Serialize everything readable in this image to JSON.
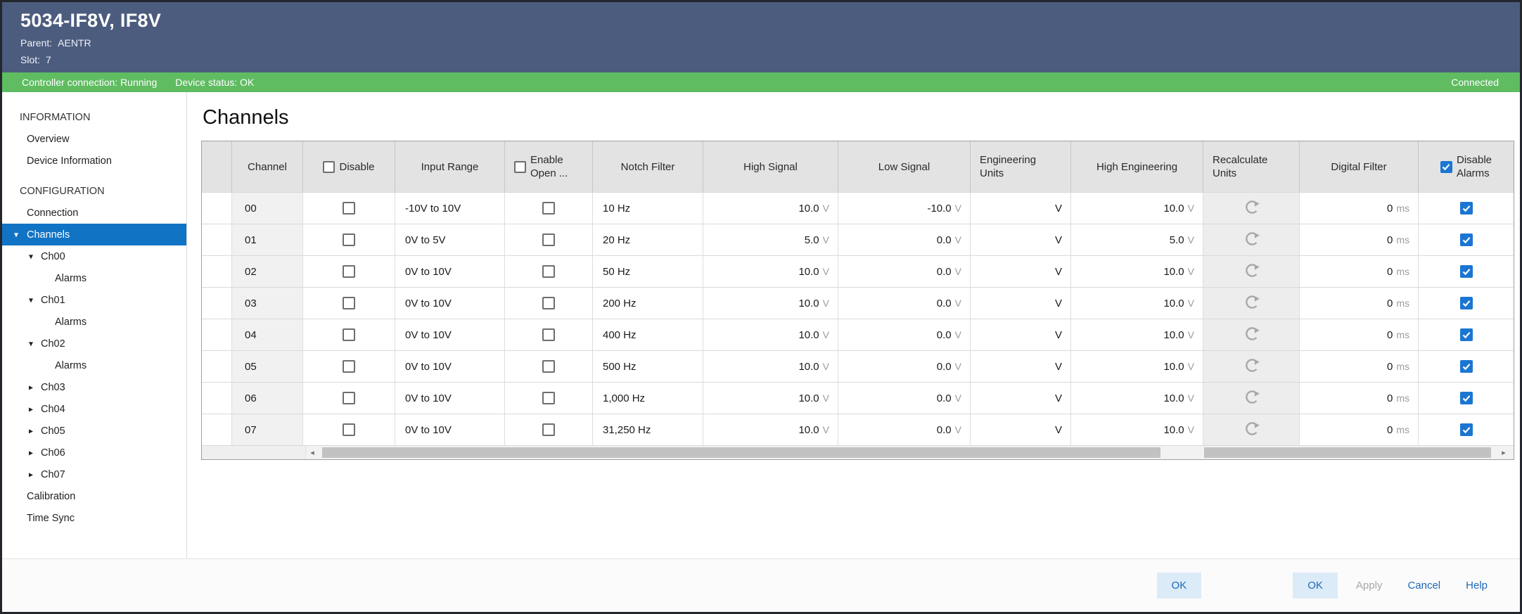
{
  "titlebar": {
    "title": "5034-IF8V, IF8V",
    "parent_label": "Parent:",
    "parent_value": "AENTR",
    "slot_label": "Slot:",
    "slot_value": "7"
  },
  "statusbar": {
    "controller": "Controller connection: Running",
    "device": "Device status: OK",
    "connection_state": "Connected"
  },
  "sidebar": {
    "items": [
      {
        "label": "INFORMATION",
        "type": "section"
      },
      {
        "label": "Overview",
        "type": "item"
      },
      {
        "label": "Device Information",
        "type": "item"
      },
      {
        "label": "CONFIGURATION",
        "type": "section"
      },
      {
        "label": "Connection",
        "type": "item"
      },
      {
        "label": "Channels",
        "type": "item",
        "arrow": "expanded",
        "selected": true
      },
      {
        "label": "Ch00",
        "type": "child",
        "arrow": "expanded"
      },
      {
        "label": "Alarms",
        "type": "grandchild"
      },
      {
        "label": "Ch01",
        "type": "child",
        "arrow": "expanded"
      },
      {
        "label": "Alarms",
        "type": "grandchild"
      },
      {
        "label": "Ch02",
        "type": "child",
        "arrow": "expanded"
      },
      {
        "label": "Alarms",
        "type": "grandchild"
      },
      {
        "label": "Ch03",
        "type": "child",
        "arrow": "collapsed"
      },
      {
        "label": "Ch04",
        "type": "child",
        "arrow": "collapsed"
      },
      {
        "label": "Ch05",
        "type": "child",
        "arrow": "collapsed"
      },
      {
        "label": "Ch06",
        "type": "child",
        "arrow": "collapsed"
      },
      {
        "label": "Ch07",
        "type": "child",
        "arrow": "collapsed"
      },
      {
        "label": "Calibration",
        "type": "item"
      },
      {
        "label": "Time Sync",
        "type": "item"
      }
    ]
  },
  "main": {
    "title": "Channels",
    "table": {
      "headers": {
        "channel": "Channel",
        "disable": "Disable",
        "input_range": "Input Range",
        "enable_open_line1": "Enable",
        "enable_open_line2": "Open ...",
        "notch_filter": "Notch Filter",
        "high_signal": "High Signal",
        "low_signal": "Low Signal",
        "engineering_units_line1": "Engineering",
        "engineering_units_line2": "Units",
        "high_engineering": "High Engineering",
        "recalculate_line1": "Recalculate",
        "recalculate_line2": "Units",
        "digital_filter": "Digital Filter",
        "disable_alarms_line1": "Disable",
        "disable_alarms_line2": "Alarms"
      },
      "header_checkboxes": {
        "disable": false,
        "enable_open": false,
        "disable_alarms": true
      },
      "signal_unit": "V",
      "filter_unit": "ms",
      "rows": [
        {
          "channel": "00",
          "disable": false,
          "input_range": "-10V to 10V",
          "enable_open": false,
          "notch_filter": "10 Hz",
          "high_signal": "10.0",
          "low_signal": "-10.0",
          "engineering_units": "V",
          "high_engineering": "10.0",
          "digital_filter": "0",
          "disable_alarms": true
        },
        {
          "channel": "01",
          "disable": false,
          "input_range": "0V to 5V",
          "enable_open": false,
          "notch_filter": "20 Hz",
          "high_signal": "5.0",
          "low_signal": "0.0",
          "engineering_units": "V",
          "high_engineering": "5.0",
          "digital_filter": "0",
          "disable_alarms": true
        },
        {
          "channel": "02",
          "disable": false,
          "input_range": "0V to 10V",
          "enable_open": false,
          "notch_filter": "50 Hz",
          "high_signal": "10.0",
          "low_signal": "0.0",
          "engineering_units": "V",
          "high_engineering": "10.0",
          "digital_filter": "0",
          "disable_alarms": true
        },
        {
          "channel": "03",
          "disable": false,
          "input_range": "0V to 10V",
          "enable_open": false,
          "notch_filter": "200 Hz",
          "high_signal": "10.0",
          "low_signal": "0.0",
          "engineering_units": "V",
          "high_engineering": "10.0",
          "digital_filter": "0",
          "disable_alarms": true
        },
        {
          "channel": "04",
          "disable": false,
          "input_range": "0V to 10V",
          "enable_open": false,
          "notch_filter": "400 Hz",
          "high_signal": "10.0",
          "low_signal": "0.0",
          "engineering_units": "V",
          "high_engineering": "10.0",
          "digital_filter": "0",
          "disable_alarms": true
        },
        {
          "channel": "05",
          "disable": false,
          "input_range": "0V to 10V",
          "enable_open": false,
          "notch_filter": "500 Hz",
          "high_signal": "10.0",
          "low_signal": "0.0",
          "engineering_units": "V",
          "high_engineering": "10.0",
          "digital_filter": "0",
          "disable_alarms": true
        },
        {
          "channel": "06",
          "disable": false,
          "input_range": "0V to 10V",
          "enable_open": false,
          "notch_filter": "1,000 Hz",
          "high_signal": "10.0",
          "low_signal": "0.0",
          "engineering_units": "V",
          "high_engineering": "10.0",
          "digital_filter": "0",
          "disable_alarms": true
        },
        {
          "channel": "07",
          "disable": false,
          "input_range": "0V to 10V",
          "enable_open": false,
          "notch_filter": "31,250 Hz",
          "high_signal": "10.0",
          "low_signal": "0.0",
          "engineering_units": "V",
          "high_engineering": "10.0",
          "digital_filter": "0",
          "disable_alarms": true
        }
      ]
    }
  },
  "footer": {
    "buttons": [
      {
        "label": "OK",
        "style": "primary"
      },
      {
        "label": "OK",
        "style": "primary"
      },
      {
        "label": "Apply",
        "style": "disabled"
      },
      {
        "label": "Cancel",
        "style": "link"
      },
      {
        "label": "Help",
        "style": "link"
      }
    ]
  },
  "colors": {
    "titlebar_bg": "#4c5c7e",
    "status_ok_green": "#5fbc61",
    "selection_blue": "#1173c4",
    "checkbox_checked_blue": "#1b76d2",
    "link_blue": "#1e68b8",
    "table_header_gray": "#e3e3e3"
  }
}
